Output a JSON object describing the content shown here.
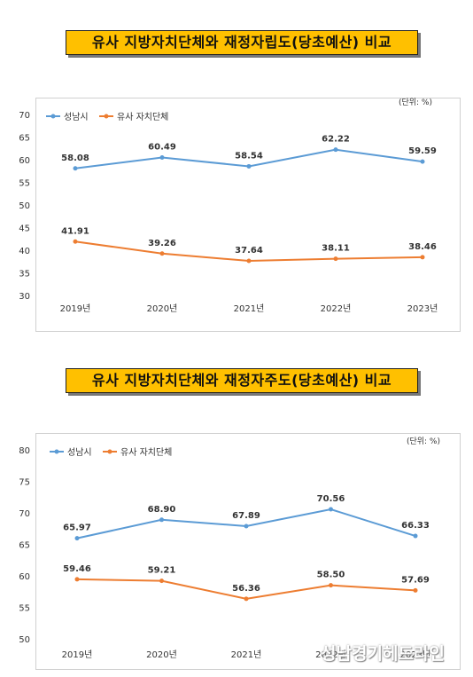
{
  "colors": {
    "series_blue": "#5b9bd5",
    "series_orange": "#ed7d31",
    "title_bg": "#ffc000"
  },
  "watermark": "성남경기헤드라인",
  "chart_data": [
    {
      "type": "line",
      "title": "유사 지방자치단체와 재정자립도(당초예산) 비교",
      "unit_label": "(단위: %)",
      "categories": [
        "2019년",
        "2020년",
        "2021년",
        "2022년",
        "2023년"
      ],
      "ylim": [
        30,
        70
      ],
      "yticks": [
        30,
        35,
        40,
        45,
        50,
        55,
        60,
        65,
        70
      ],
      "grid": false,
      "legend": "top-left",
      "series": [
        {
          "name": "성남시",
          "color": "#5b9bd5",
          "values": [
            58.08,
            60.49,
            58.54,
            62.22,
            59.59
          ],
          "labels": [
            "58.08",
            "60.49",
            "58.54",
            "62.22",
            "59.59"
          ]
        },
        {
          "name": "유사 자치단체",
          "color": "#ed7d31",
          "values": [
            41.91,
            39.26,
            37.64,
            38.11,
            38.46
          ],
          "labels": [
            "41.91",
            "39.26",
            "37.64",
            "38.11",
            "38.46"
          ]
        }
      ]
    },
    {
      "type": "line",
      "title": "유사 지방자치단체와 재정자주도(당초예산) 비교",
      "unit_label": "(단위: %)",
      "categories": [
        "2019년",
        "2020년",
        "2021년",
        "2022년",
        "2023년"
      ],
      "ylim": [
        50,
        80
      ],
      "yticks": [
        50,
        55,
        60,
        65,
        70,
        75,
        80
      ],
      "grid": false,
      "legend": "top-left",
      "series": [
        {
          "name": "성남시",
          "color": "#5b9bd5",
          "values": [
            65.97,
            68.9,
            67.89,
            70.56,
            66.33
          ],
          "labels": [
            "65.97",
            "68.90",
            "67.89",
            "70.56",
            "66.33"
          ]
        },
        {
          "name": "유사 자치단체",
          "color": "#ed7d31",
          "values": [
            59.46,
            59.21,
            56.36,
            58.5,
            57.69
          ],
          "labels": [
            "59.46",
            "59.21",
            "56.36",
            "58.50",
            "57.69"
          ]
        }
      ]
    }
  ]
}
